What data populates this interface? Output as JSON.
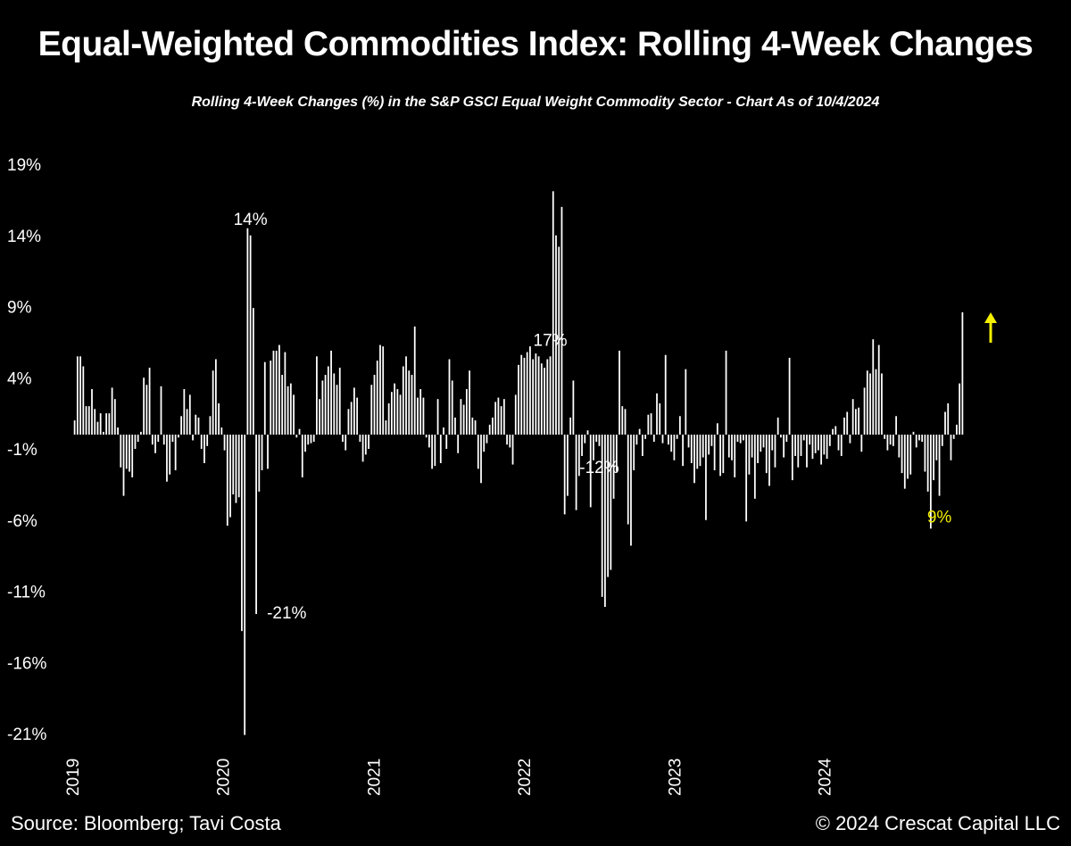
{
  "header": {
    "title": "Equal-Weighted Commodities Index: Rolling 4-Week Changes",
    "subtitle": "Rolling 4-Week Changes (%) in the S&P GSCI Equal Weight Commodity Sector - Chart As of 10/4/2024"
  },
  "footer": {
    "source": "Source: Bloomberg; Tavi Costa",
    "copyright": "© 2024 Crescat Capital LLC"
  },
  "colors": {
    "background": "#000000",
    "bars": "#ffffff",
    "highlight": "#f5f000"
  },
  "icons": {
    "arrow": "arrow-up-icon"
  },
  "chart_data": {
    "type": "bar",
    "title": "Equal-Weighted Commodities Index: Rolling 4-Week Changes",
    "subtitle": "Rolling 4-Week Changes (%) in the S&P GSCI Equal Weight Commodity Sector - Chart As of 10/4/2024",
    "xlabel": "",
    "ylabel": "",
    "ylim": [
      -21,
      19
    ],
    "y_ticks": [
      "19%",
      "14%",
      "9%",
      "4%",
      "-1%",
      "-6%",
      "-11%",
      "-16%",
      "-21%"
    ],
    "x_tick_labels": [
      "2019",
      "2020",
      "2021",
      "2022",
      "2023",
      "2024"
    ],
    "x_start": "2019-01-04",
    "frequency": "weekly",
    "grid": false,
    "legend": "none",
    "annotations": [
      {
        "text": "14%",
        "bar_index": 61
      },
      {
        "text": "-21%",
        "bar_index": 63
      },
      {
        "text": "17%",
        "bar_index": 165
      },
      {
        "text": "-12%",
        "bar_index": 182
      },
      {
        "text": "9%",
        "bar_index": 300,
        "highlight": true
      }
    ],
    "values": [
      1,
      5.5,
      5.5,
      4.8,
      2,
      2,
      3.2,
      1.8,
      0.9,
      1.5,
      0.2,
      1.5,
      1.5,
      3.3,
      2.5,
      0.5,
      -2.3,
      -4.3,
      -2.4,
      -2.6,
      -3,
      -1,
      -0.5,
      0.2,
      4,
      3.5,
      4.7,
      -0.7,
      -1.3,
      -0.5,
      3.4,
      -0.7,
      -3.3,
      -2.8,
      -0.5,
      -2.5,
      -0.2,
      1.3,
      3.2,
      1.8,
      2.8,
      -0.4,
      1.4,
      1.2,
      -1,
      -2,
      -0.8,
      1.3,
      4.5,
      5.3,
      2.2,
      0.5,
      -1.1,
      -6.4,
      -5.8,
      -4.2,
      -4.8,
      -4.4,
      -13.8,
      -21.1,
      14.5,
      14,
      8.9,
      -12.6,
      -4,
      -2.5,
      5.1,
      -2.4,
      5.2,
      5.9,
      5.9,
      6.3,
      4.2,
      5.8,
      3.4,
      3.6,
      2.8,
      -0.2,
      0.4,
      -3,
      -1.2,
      -0.7,
      -0.6,
      -0.5,
      5.5,
      2.5,
      3.8,
      4.2,
      4.8,
      5.9,
      4.3,
      3.5,
      4.7,
      -0.5,
      -1.1,
      1.8,
      2.3,
      3.3,
      2.6,
      -0.5,
      -1.9,
      -1.4,
      -1,
      3.5,
      4.2,
      5.2,
      6.3,
      6.2,
      1,
      2.2,
      3,
      3.6,
      3.2,
      2.8,
      4.8,
      5.5,
      4.5,
      4.2,
      7.6,
      2.6,
      3.2,
      2.6,
      -0.2,
      -0.9,
      -2.4,
      -2.2,
      2.5,
      -2,
      0.5,
      -1,
      5.3,
      3.8,
      1.2,
      -1.3,
      2.5,
      2.1,
      3.2,
      4.5,
      1.2,
      1,
      -2.4,
      -3.4,
      -1.2,
      -0.6,
      0.7,
      1.2,
      2.3,
      2.6,
      2,
      2.5,
      -0.7,
      -0.9,
      -2.1,
      2.8,
      4.9,
      5.6,
      5.4,
      5.8,
      6.2,
      5.3,
      5.7,
      5.5,
      5,
      4.7,
      5.3,
      5.5,
      17.1,
      14,
      13.2,
      16,
      -5.6,
      -4.3,
      1.2,
      3.8,
      -5.3,
      -2.9,
      -1.5,
      -0.6,
      0.3,
      -5.1,
      -1.8,
      -0.5,
      -0.8,
      -11.4,
      -12.1,
      -10,
      -9.5,
      -4.5,
      -2.6,
      5.9,
      2,
      1.8,
      -6.3,
      -7.8,
      -2.5,
      -0.7,
      0.4,
      -1.5,
      -0.3,
      1.4,
      1.5,
      -0.5,
      2.9,
      2.2,
      -0.6,
      5.6,
      -0.7,
      -1.2,
      -1.8,
      -0.3,
      1.3,
      -2.2,
      4.6,
      -0.9,
      -2,
      -3.4,
      -2.4,
      -2.2,
      -1.6,
      -6,
      -1.4,
      -0.8,
      -2.5,
      0.8,
      -2.9,
      -2.7,
      5.9,
      -1.6,
      -1.8,
      -3,
      -0.5,
      -0.6,
      -0.4,
      -6.1,
      -2.8,
      -1.6,
      -4.5,
      -2,
      -1.2,
      -0.9,
      -2.7,
      -3.6,
      -1.1,
      -2.3,
      1.2,
      -0.2,
      -1.6,
      -0.5,
      5.4,
      -3.2,
      -1.5,
      -2.3,
      -1.5,
      -0.4,
      -2.3,
      -0.7,
      -1.7,
      -1.3,
      -1.1,
      -2.1,
      -1.4,
      -1.7,
      -0.8,
      0.4,
      0.6,
      -1.1,
      -1.5,
      1.2,
      1.6,
      -0.6,
      2.5,
      1.8,
      1.9,
      -1.2,
      3.3,
      4.5,
      4.3,
      6.7,
      4.6,
      6.3,
      4.3,
      -0.3,
      -1.1,
      -0.7,
      -0.8,
      1.3,
      -1.6,
      -2.7,
      -3.8,
      -3.1,
      -2.8,
      0.2,
      -0.9,
      -0.4,
      -0.5,
      -2.6,
      -4,
      -6.6,
      -3.2,
      -1.8,
      -4.3,
      -0.8,
      1.6,
      2.2,
      -1.8,
      -0.3,
      0.7,
      3.6,
      8.6
    ]
  }
}
